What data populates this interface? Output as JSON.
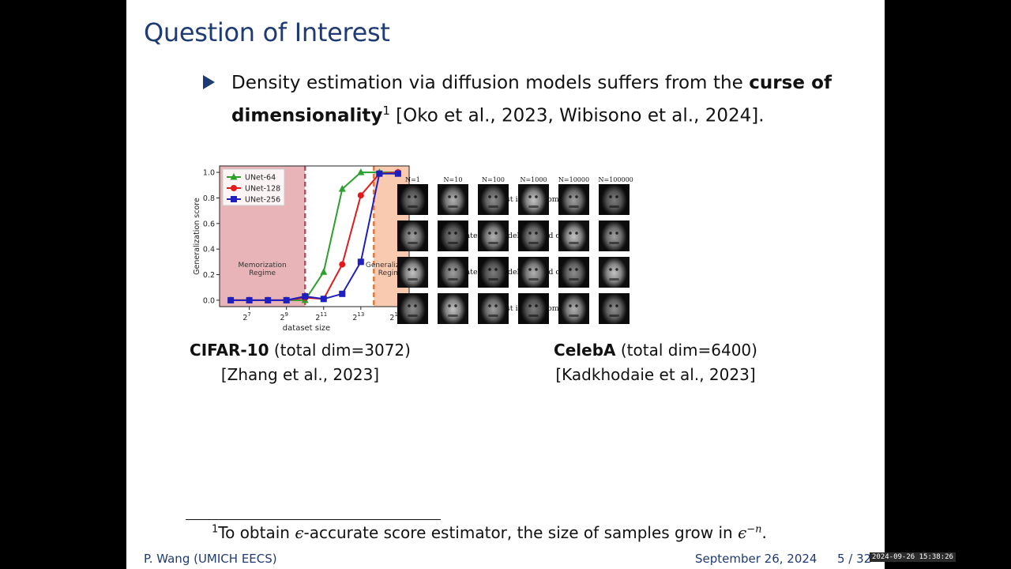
{
  "slide": {
    "title": "Question of Interest",
    "bullet": {
      "text_before": "Density estimation via diffusion models suffers from the ",
      "bold_text": "curse of dimensionality",
      "footnote_mark": "1",
      "text_after": " [Oko et al., 2023, Wibisono et al., 2024]."
    },
    "left_caption": {
      "bold": "CIFAR-10",
      "rest": " (total dim=3072)",
      "cite": "[Zhang et al., 2023]"
    },
    "right_caption": {
      "bold": "CelebA",
      "rest": " (total dim=6400)",
      "cite": "[Kadkhodaie et al., 2023]"
    },
    "footnote": {
      "mark": "1",
      "text_before": "To obtain ",
      "math1": "ϵ",
      "text_mid": "-accurate score estimator, the size of samples grow in ",
      "math2": "ϵ",
      "math2_sup": "−n",
      "text_after": "."
    },
    "footer": {
      "author": "P. Wang (UMICH EECS)",
      "date": "September 26, 2024",
      "page": "5 / 32"
    },
    "timestamp": "2024-09-26 15:38:26"
  },
  "celeb": {
    "n_labels": [
      "N=1",
      "N=10",
      "N=100",
      "N=1000",
      "N=10000",
      "N=100000"
    ],
    "rows": [
      {
        "label": "Closest image from S",
        "sub": "1",
        "tail": ":"
      },
      {
        "label": "Generated by models trained on S",
        "sub": "1",
        "tail": ":"
      },
      {
        "label": "Generated by models trained on S",
        "sub": "2",
        "tail": ":"
      },
      {
        "label": "Closest image from S",
        "sub": "2",
        "tail": ":"
      }
    ]
  },
  "chart_data": {
    "type": "line",
    "xlabel": "dataset size",
    "ylabel": "Generalization score",
    "x_log2": [
      6,
      7,
      8,
      9,
      10,
      11,
      12,
      13,
      14,
      15
    ],
    "x_tick_labels": [
      "2^7",
      "2^9",
      "2^11",
      "2^13",
      "2^15"
    ],
    "x_tick_exponents": [
      7,
      9,
      11,
      13,
      15
    ],
    "ylim": [
      -0.05,
      1.05
    ],
    "y_ticks": [
      "0.0",
      "0.2",
      "0.4",
      "0.6",
      "0.8",
      "1.0"
    ],
    "series": [
      {
        "name": "UNet-64",
        "color": "#2ca02c",
        "marker": "triangle",
        "values": [
          0.0,
          0.0,
          0.0,
          0.0,
          0.0,
          0.22,
          0.87,
          1.0,
          1.0,
          1.0
        ]
      },
      {
        "name": "UNet-128",
        "color": "#e31a1c",
        "marker": "circle",
        "values": [
          0.0,
          0.0,
          0.0,
          0.0,
          0.02,
          0.01,
          0.28,
          0.82,
          0.99,
          1.0
        ]
      },
      {
        "name": "UNet-256",
        "color": "#1f1fbf",
        "marker": "square",
        "values": [
          0.0,
          0.0,
          0.0,
          0.0,
          0.03,
          0.01,
          0.05,
          0.3,
          0.99,
          0.99
        ]
      }
    ],
    "regions": [
      {
        "name": "Memorization Regime",
        "line1": "Memorization",
        "line2": "Regime",
        "color": "#e8b4b8",
        "x_end_log2": 10.0,
        "line_color": "#b05060"
      },
      {
        "name": "Generalization Regime",
        "line1": "Generalization",
        "line2": "Regime",
        "color": "#f9c9b0",
        "x_start_log2": 13.7,
        "line_color": "#e07a40"
      }
    ],
    "legend": "top-left"
  }
}
